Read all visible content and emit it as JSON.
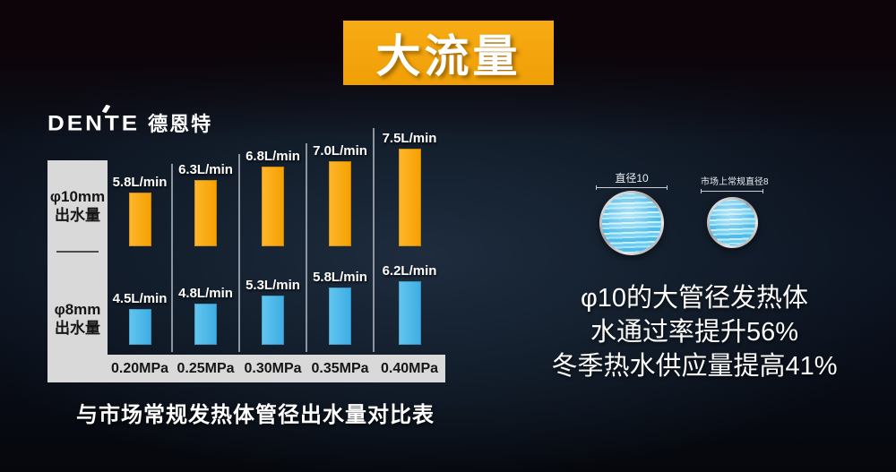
{
  "banner": {
    "title": "大流量"
  },
  "logo": {
    "latin": "DENTE",
    "cn": "德恩特"
  },
  "chart_data": {
    "type": "bar",
    "categories": [
      "0.20MPa",
      "0.25MPa",
      "0.30MPa",
      "0.35MPa",
      "0.40MPa"
    ],
    "series": [
      {
        "name": "φ10mm出水量",
        "axis_label_line1": "φ10mm",
        "axis_label_line2": "出水量",
        "unit": "L/min",
        "color": "#F7A60B",
        "values": [
          5.8,
          6.3,
          6.8,
          7.0,
          7.5
        ]
      },
      {
        "name": "φ8mm出水量",
        "axis_label_line1": "φ8mm",
        "axis_label_line2": "出水量",
        "unit": "L/min",
        "color": "#4AB7E8",
        "values": [
          4.5,
          4.8,
          5.3,
          5.8,
          6.2
        ]
      }
    ],
    "title": "与市场常规发热体管径出水量对比表",
    "xlabel": "",
    "ylabel": "",
    "legend": "row-labels-left",
    "grid": "vertical-column-dividers"
  },
  "right_panel": {
    "pipe_large_label": "直径10",
    "pipe_small_label": "市场上常规直径8",
    "lines": [
      "φ10的大管径发热体",
      "水通过率提升56%",
      "冬季热水供应量提高41%"
    ]
  },
  "colors": {
    "accent_orange": "#F5A60F",
    "bar_orange": "#F7A60B",
    "bar_blue": "#4AB7E8",
    "axis_strip": "#D9D9D9",
    "background": "#0C1320"
  }
}
